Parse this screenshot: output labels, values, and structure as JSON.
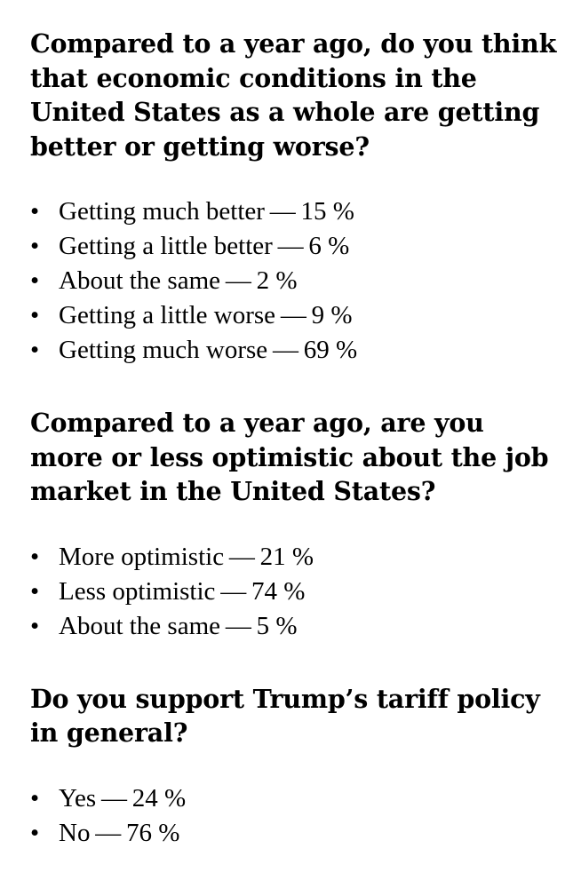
{
  "sections": [
    {
      "question": "Compared to a year ago, do you think that economic conditions in the United States as a whole are getting better or getting worse?",
      "answers": [
        {
          "label": "Getting much better",
          "separator": "—",
          "value": "15 %"
        },
        {
          "label": "Getting a little better",
          "separator": "—",
          "value": "6 %"
        },
        {
          "label": "About the same",
          "separator": "—",
          "value": "2 %"
        },
        {
          "label": "Getting a little worse",
          "separator": "—",
          "value": "9 %"
        },
        {
          "label": "Getting much worse",
          "separator": "—",
          "value": "69 %"
        }
      ]
    },
    {
      "question": "Compared to a year ago, are you more or less optimistic about the job market in the United States?",
      "answers": [
        {
          "label": "More optimistic",
          "separator": "—",
          "value": "21 %"
        },
        {
          "label": "Less optimistic",
          "separator": "—",
          "value": "74 %"
        },
        {
          "label": "About the same",
          "separator": "—",
          "value": "5 %"
        }
      ]
    },
    {
      "question": "Do you support Trump’s tariff policy in general?",
      "answers": [
        {
          "label": "Yes",
          "separator": "—",
          "value": "24 %"
        },
        {
          "label": "No",
          "separator": "—",
          "value": "76 %"
        }
      ]
    }
  ],
  "bullet_glyph": "•"
}
